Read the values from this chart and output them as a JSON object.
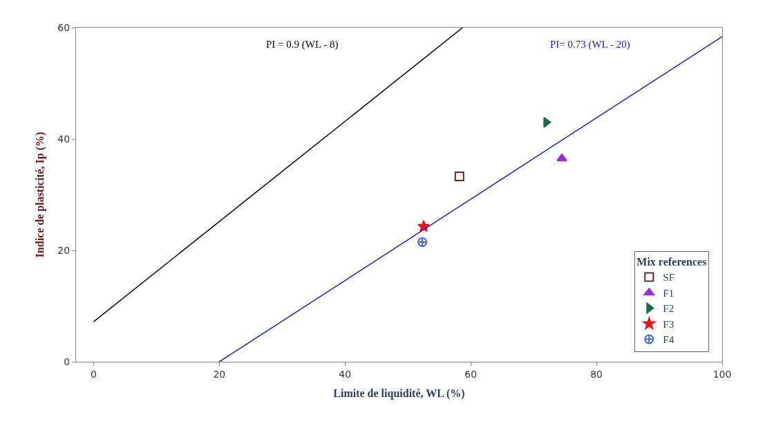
{
  "chart_data": {
    "type": "scatter",
    "xlabel": "Limite de liquidité, WL (%)",
    "ylabel": "Indice de plasticité, Ip (%)",
    "legend_title": "Mix references",
    "legend": "bottom right",
    "xlim": [
      -2.8,
      100
    ],
    "xticks": [
      0,
      20,
      40,
      60,
      80,
      100
    ],
    "ylim": [
      0,
      60
    ],
    "yticks": [
      0,
      20,
      40,
      60
    ],
    "series": [
      {
        "name": "SF",
        "color": "#5c2a2a",
        "marker": "square-open",
        "x": [
          58.2
        ],
        "values": [
          33.3
        ]
      },
      {
        "name": "F1",
        "color": "#9a2fd0",
        "marker": "triangle-up",
        "x": [
          74.5
        ],
        "values": [
          36.5
        ]
      },
      {
        "name": "F2",
        "color": "#1b6b48",
        "marker": "triangle-right",
        "x": [
          72
        ],
        "values": [
          43
        ]
      },
      {
        "name": "F3",
        "color": "#e01818",
        "marker": "star",
        "x": [
          52.5
        ],
        "values": [
          24.3
        ]
      },
      {
        "name": "F4",
        "color": "#4a63c8",
        "marker": "cross",
        "x": [
          52.3
        ],
        "values": [
          21.5
        ]
      },
      {
        "type": "line",
        "color": "#000000",
        "x": [
          0,
          58.7
        ],
        "values": [
          7.2,
          60
        ]
      },
      {
        "type": "line",
        "color": "#1f22b0",
        "x": [
          20,
          100
        ],
        "values": [
          0,
          58.4
        ]
      }
    ],
    "annotations": [
      "PI = 0.9 (WL - 8)",
      "PI= 0.73 (WL - 20)"
    ]
  }
}
